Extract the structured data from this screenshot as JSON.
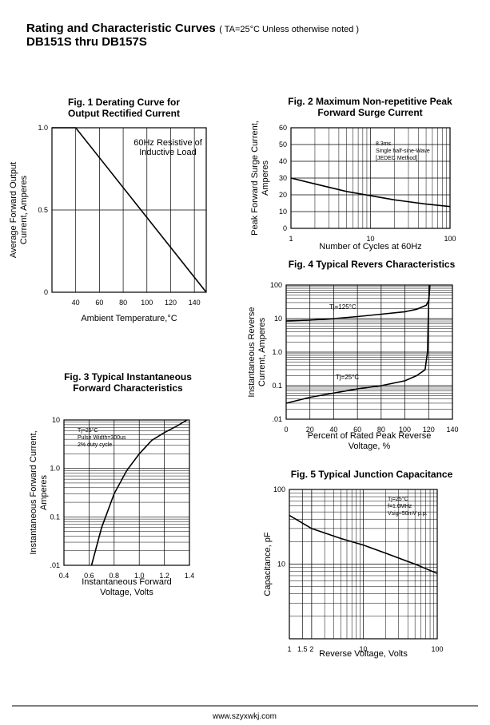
{
  "header": {
    "title": "Rating and Characteristic Curves",
    "note": "( TA=25°C Unless otherwise noted )",
    "parts": "DB151S thru DB157S"
  },
  "chart_data": [
    {
      "type": "line",
      "title": [
        "Fig. 1 Derating Curve for",
        "Output Rectified Current"
      ],
      "x_label": [
        "Ambient Temperature,°C"
      ],
      "y_label": [
        "Average Forward Output",
        "Current, Amperes"
      ],
      "annotation": [
        "60Hz Resistive of",
        "Inductive Load"
      ],
      "xlim": [
        20,
        150
      ],
      "xticks": [
        40,
        60,
        80,
        100,
        120,
        140
      ],
      "ylim": [
        0,
        1
      ],
      "yticks": [
        0,
        0.5,
        {
          "value": 1,
          "label": "1.0"
        }
      ],
      "grid": true,
      "series": [
        {
          "color": "#000000",
          "x": [
            20,
            40,
            150
          ],
          "values": [
            1,
            1,
            0
          ]
        }
      ]
    },
    {
      "type": "line",
      "title": [
        "Fig. 2 Maximum Non-repetitive Peak",
        "Forward Surge Current"
      ],
      "x_label": [
        "Number of Cycles at 60Hz"
      ],
      "y_label": [
        "Peak Forward Surge Current,",
        "Amperes"
      ],
      "annotation": [
        "8.3ms",
        "Single half-sine-Wave",
        "[JEDEC Method]"
      ],
      "xscale": "log",
      "xlim": [
        1,
        100
      ],
      "xticks": [
        1,
        10,
        100
      ],
      "ylim": [
        0,
        60
      ],
      "yticks": [
        0,
        10,
        20,
        30,
        40,
        50,
        60
      ],
      "grid": true,
      "series": [
        {
          "color": "#000000",
          "x": [
            1,
            2,
            5,
            10,
            20,
            50,
            100
          ],
          "values": [
            30,
            26.5,
            22,
            19.5,
            17,
            14.5,
            13
          ]
        }
      ]
    },
    {
      "type": "line",
      "title": [
        "Fig. 3 Typical Instantaneous",
        "Forward Characteristics"
      ],
      "x_label": [
        "Instantaneous Forward",
        "Voltage, Volts"
      ],
      "y_label": [
        "Instantaneous Forward Current,",
        "Amperes"
      ],
      "annotation": [
        "Tj=25°C",
        "Pulse Width=300us",
        "2% duty cycle"
      ],
      "xlim": [
        0.4,
        1.4
      ],
      "xticks": [
        0.4,
        0.6,
        0.8,
        {
          "value": 1,
          "label": "1.0"
        },
        1.2,
        1.4
      ],
      "yscale": "log",
      "ylim": [
        0.01,
        10
      ],
      "yticks": [
        {
          "value": 0.01,
          "label": ".01"
        },
        0.1,
        {
          "value": 1,
          "label": "1.0"
        },
        10
      ],
      "grid": true,
      "series": [
        {
          "color": "#000000",
          "x": [
            0.62,
            0.7,
            0.8,
            0.9,
            1.0,
            1.1,
            1.2,
            1.3,
            1.38
          ],
          "values": [
            0.01,
            0.06,
            0.3,
            0.9,
            2,
            3.8,
            5.5,
            7.5,
            10
          ]
        }
      ]
    },
    {
      "type": "line",
      "title": [
        "Fig. 4 Typical Revers Characteristics"
      ],
      "x_label": [
        "Percent of Rated Peak Reverse",
        "Voltage, %"
      ],
      "y_label": [
        "Instantaneous Reverse",
        "Current, Amperes"
      ],
      "xlim": [
        0,
        140
      ],
      "xticks": [
        0,
        20,
        40,
        60,
        80,
        100,
        120,
        140
      ],
      "yscale": "log",
      "ylim": [
        0.01,
        100
      ],
      "yticks": [
        {
          "value": 0.01,
          "label": ".01"
        },
        0.1,
        {
          "value": 1,
          "label": "1.0"
        },
        10,
        100
      ],
      "grid": true,
      "series": [
        {
          "name": "Tj=125°C",
          "color": "#000000",
          "x": [
            0,
            20,
            40,
            60,
            80,
            100,
            110,
            118,
            120,
            121
          ],
          "values": [
            8.5,
            9,
            10,
            11.5,
            13.5,
            16,
            19,
            25,
            35,
            100
          ]
        },
        {
          "name": "Tj=25°C",
          "color": "#000000",
          "x": [
            0,
            20,
            40,
            60,
            80,
            100,
            110,
            117,
            119,
            120,
            121
          ],
          "values": [
            0.03,
            0.045,
            0.06,
            0.08,
            0.1,
            0.14,
            0.2,
            0.3,
            1,
            30,
            100
          ]
        }
      ]
    },
    {
      "type": "line",
      "title": [
        "Fig. 5 Typical Junction Capacitance"
      ],
      "x_label": [
        "Reverse Voltage, Volts"
      ],
      "y_label": [
        "Capacitance, pF"
      ],
      "annotation": [
        "Tj=25°C",
        "f=1.0MHz",
        "Vsig=50mV p.p."
      ],
      "xscale": "log",
      "xlim": [
        1,
        100
      ],
      "xticks": [
        1,
        1.5,
        2,
        10,
        100
      ],
      "yscale": "log",
      "ylim": [
        1,
        100
      ],
      "yticks": [
        10,
        100
      ],
      "grid": true,
      "series": [
        {
          "color": "#000000",
          "x": [
            1,
            2,
            5,
            10,
            20,
            50,
            100
          ],
          "values": [
            45,
            30,
            22,
            18,
            14,
            10,
            7.5
          ]
        }
      ]
    }
  ],
  "footer": "www.szyxwkj.com"
}
